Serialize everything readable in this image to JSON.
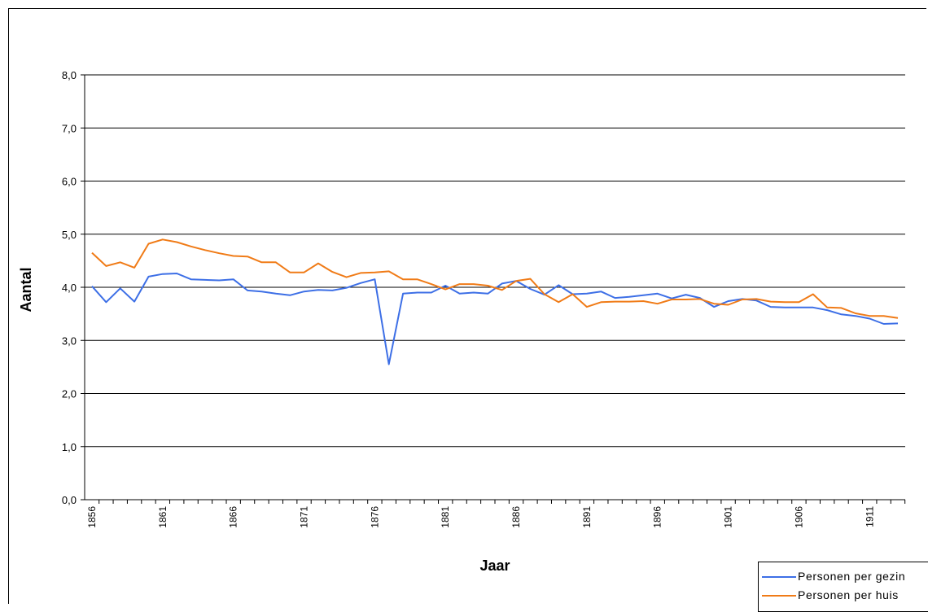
{
  "chart_data": {
    "type": "line",
    "title": "",
    "xlabel": "Jaar",
    "ylabel": "Aantal",
    "ylim": [
      0,
      8
    ],
    "yticks": [
      "0,0",
      "1,0",
      "2,0",
      "3,0",
      "4,0",
      "5,0",
      "6,0",
      "7,0",
      "8,0"
    ],
    "x": [
      1856,
      1857,
      1858,
      1859,
      1860,
      1861,
      1862,
      1863,
      1864,
      1865,
      1866,
      1867,
      1868,
      1869,
      1870,
      1871,
      1872,
      1873,
      1874,
      1875,
      1876,
      1877,
      1878,
      1879,
      1880,
      1881,
      1882,
      1883,
      1884,
      1885,
      1886,
      1887,
      1888,
      1889,
      1890,
      1891,
      1892,
      1893,
      1894,
      1895,
      1896,
      1897,
      1898,
      1899,
      1900,
      1901,
      1902,
      1903,
      1904,
      1905,
      1906,
      1907,
      1908,
      1909,
      1910,
      1911,
      1912,
      1913
    ],
    "xtick_labels": [
      "1856",
      "1861",
      "1866",
      "1871",
      "1876",
      "1881",
      "1886",
      "1891",
      "1896",
      "1901",
      "1906",
      "1911"
    ],
    "grid": "horizontal",
    "legend_position": "bottom-right",
    "series": [
      {
        "name": "Personen per gezin",
        "color": "#3d6fe6",
        "values": [
          4.02,
          3.72,
          3.98,
          3.73,
          4.2,
          4.25,
          4.26,
          4.15,
          4.14,
          4.13,
          4.15,
          3.94,
          3.92,
          3.88,
          3.85,
          3.92,
          3.95,
          3.94,
          3.99,
          4.08,
          4.15,
          2.55,
          3.88,
          3.9,
          3.9,
          4.03,
          3.88,
          3.9,
          3.88,
          4.07,
          4.12,
          3.97,
          3.86,
          4.04,
          3.87,
          3.88,
          3.92,
          3.8,
          3.82,
          3.85,
          3.88,
          3.79,
          3.86,
          3.8,
          3.63,
          3.74,
          3.78,
          3.75,
          3.63,
          3.62,
          3.62,
          3.62,
          3.57,
          3.49,
          3.46,
          3.41,
          3.31,
          3.32
        ]
      },
      {
        "name": "Personen per huis",
        "color": "#f07b17",
        "values": [
          4.65,
          4.4,
          4.47,
          4.37,
          4.82,
          4.9,
          4.85,
          4.77,
          4.7,
          4.64,
          4.59,
          4.58,
          4.47,
          4.47,
          4.28,
          4.28,
          4.45,
          4.29,
          4.19,
          4.27,
          4.28,
          4.3,
          4.15,
          4.15,
          4.06,
          3.96,
          4.06,
          4.06,
          4.03,
          3.95,
          4.12,
          4.16,
          3.87,
          3.72,
          3.87,
          3.63,
          3.72,
          3.73,
          3.73,
          3.74,
          3.69,
          3.77,
          3.77,
          3.78,
          3.69,
          3.67,
          3.77,
          3.78,
          3.73,
          3.72,
          3.72,
          3.87,
          3.62,
          3.61,
          3.51,
          3.46,
          3.46,
          3.42
        ]
      }
    ]
  }
}
